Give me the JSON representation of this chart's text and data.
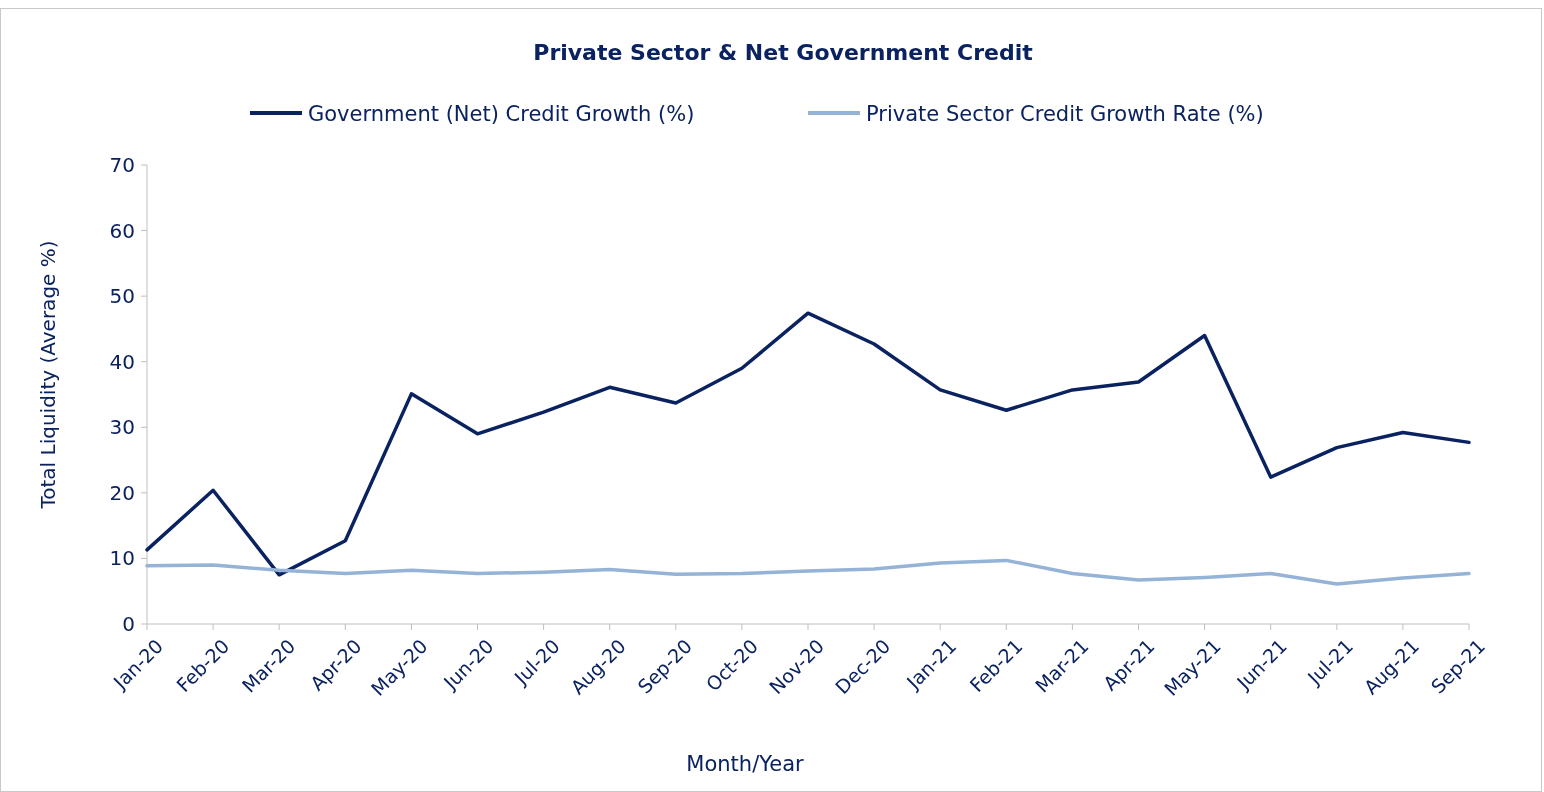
{
  "chart_data": {
    "type": "line",
    "title": "Private Sector & Net Government Credit",
    "xlabel": "Month/Year",
    "ylabel": "Total Liquidity (Average %)",
    "categories": [
      "Jan-20",
      "Feb-20",
      "Mar-20",
      "Apr-20",
      "May-20",
      "Jun-20",
      "Jul-20",
      "Aug-20",
      "Sep-20",
      "Oct-20",
      "Nov-20",
      "Dec-20",
      "Jan-21",
      "Feb-21",
      "Mar-21",
      "Apr-21",
      "May-21",
      "Jun-21",
      "Jul-21",
      "Aug-21",
      "Sep-21"
    ],
    "series": [
      {
        "name": "Government (Net) Credit Growth (%)",
        "color": "#0b2260",
        "values": [
          11.3,
          20.4,
          7.5,
          12.7,
          35.1,
          29,
          32.3,
          36.1,
          33.7,
          39,
          47.4,
          42.7,
          35.7,
          32.6,
          35.7,
          36.9,
          44,
          22.4,
          26.9,
          29.2,
          27.7
        ]
      },
      {
        "name": "Private Sector Credit Growth Rate (%)",
        "color": "#95b3d7",
        "values": [
          8.9,
          9.0,
          8.2,
          7.7,
          8.2,
          7.7,
          7.9,
          8.3,
          7.6,
          7.7,
          8.1,
          8.4,
          9.3,
          9.7,
          7.7,
          6.7,
          7.1,
          7.7,
          6.1,
          7.0,
          7.7
        ]
      }
    ],
    "ylim": [
      0,
      70
    ],
    "yticks": [
      0,
      10,
      20,
      30,
      40,
      50,
      60,
      70
    ],
    "grid": false,
    "legend": "top",
    "marker": "none",
    "line_style": "solid"
  }
}
